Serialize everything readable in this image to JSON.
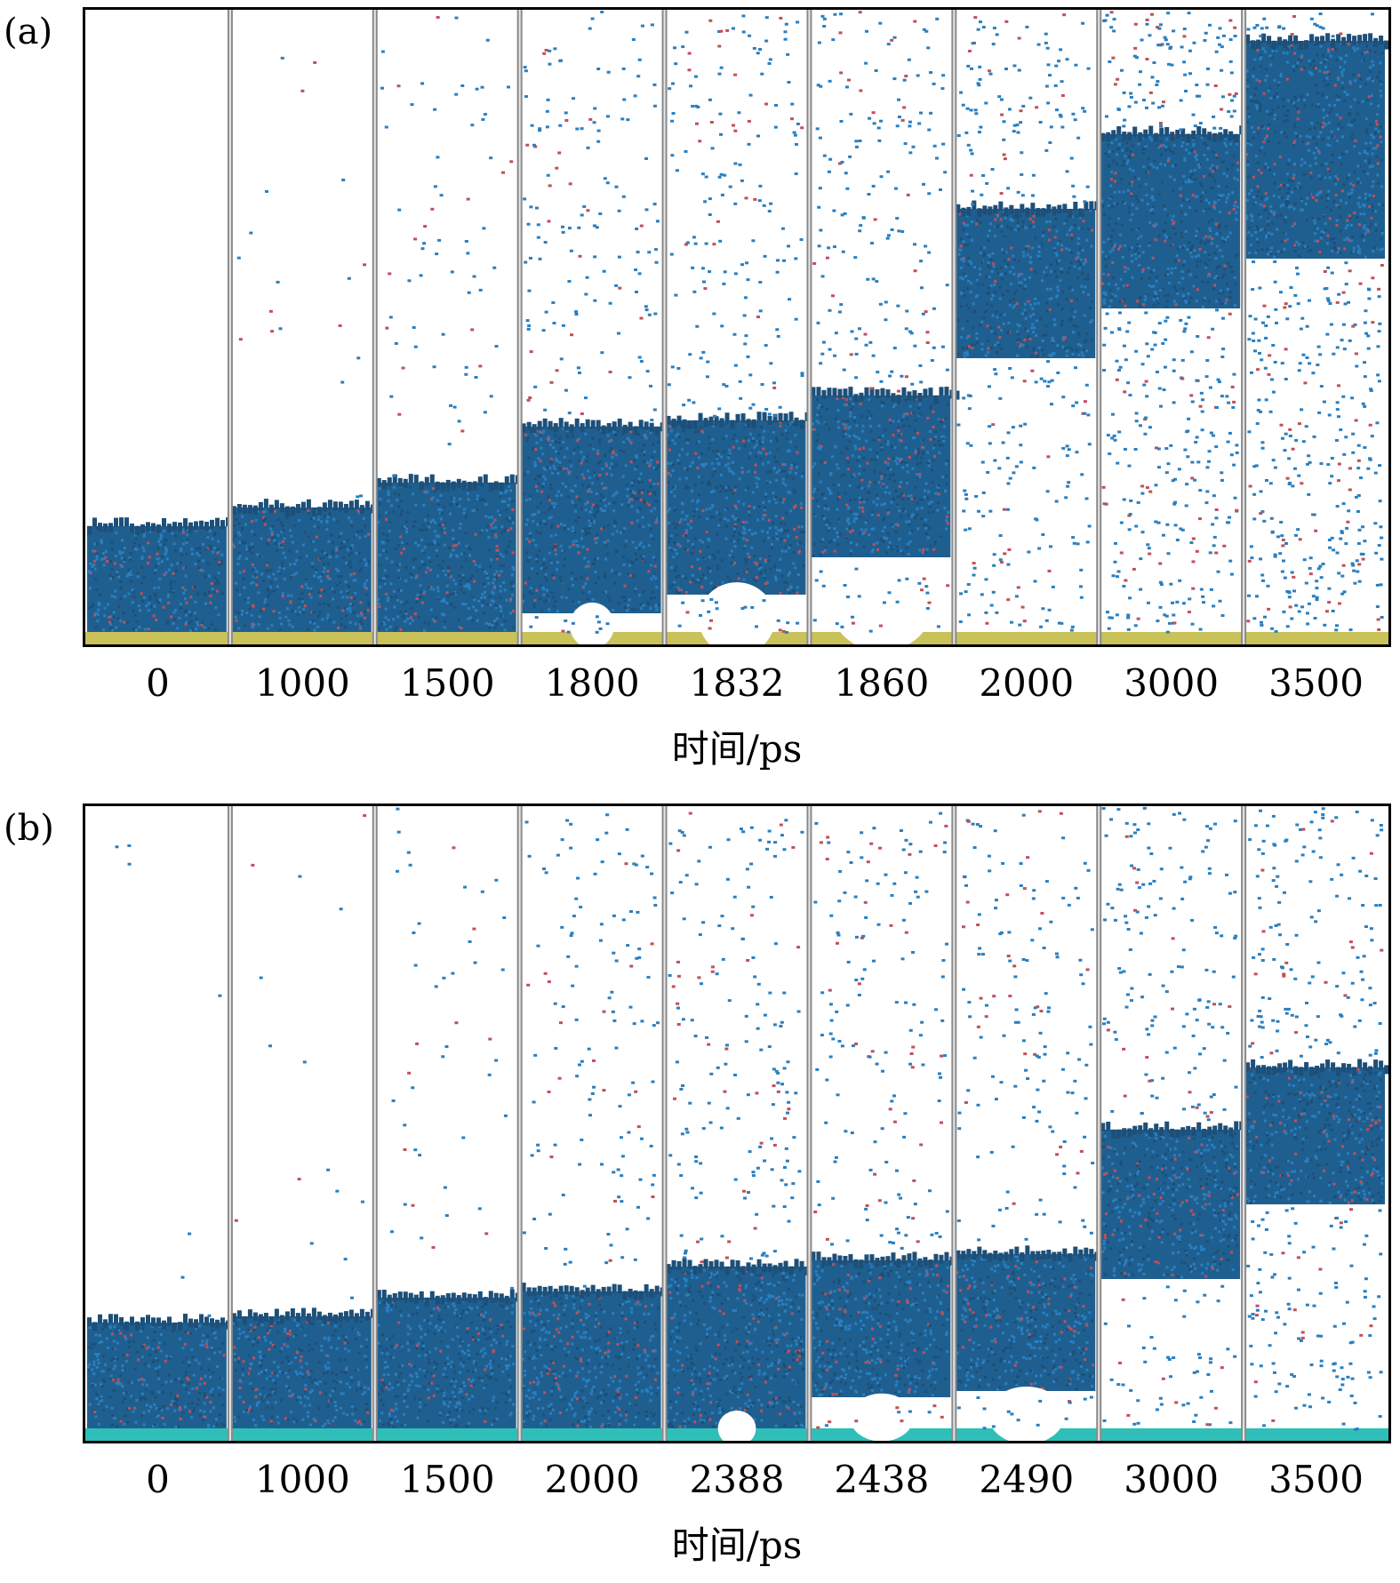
{
  "figure": {
    "panels": [
      {
        "id": "a",
        "label": "(a)",
        "xlabel": "时间/ps",
        "frames": [
          {
            "time": "0",
            "liquid_bottom": 0.0,
            "liquid_top": 0.17,
            "vapor_density": 0.0,
            "bubble": 0
          },
          {
            "time": "1000",
            "liquid_bottom": 0.0,
            "liquid_top": 0.2,
            "vapor_density": 0.03,
            "bubble": 0
          },
          {
            "time": "1500",
            "liquid_bottom": 0.0,
            "liquid_top": 0.24,
            "vapor_density": 0.1,
            "bubble": 0
          },
          {
            "time": "1800",
            "liquid_bottom": 0.03,
            "liquid_top": 0.33,
            "vapor_density": 0.25,
            "bubble": 0.35
          },
          {
            "time": "1832",
            "liquid_bottom": 0.06,
            "liquid_top": 0.34,
            "vapor_density": 0.28,
            "bubble": 0.6
          },
          {
            "time": "1860",
            "liquid_bottom": 0.12,
            "liquid_top": 0.38,
            "vapor_density": 0.3,
            "bubble": 0.8
          },
          {
            "time": "2000",
            "liquid_bottom": 0.44,
            "liquid_top": 0.68,
            "vapor_density": 0.35,
            "bubble": 0
          },
          {
            "time": "3000",
            "liquid_bottom": 0.52,
            "liquid_top": 0.8,
            "vapor_density": 0.55,
            "bubble": 0
          },
          {
            "time": "3500",
            "liquid_bottom": 0.6,
            "liquid_top": 0.95,
            "vapor_density": 0.6,
            "bubble": 0
          }
        ],
        "substrate_color": "#c9c25a"
      },
      {
        "id": "b",
        "label": "(b)",
        "xlabel": "时间/ps",
        "frames": [
          {
            "time": "0",
            "liquid_bottom": 0.0,
            "liquid_top": 0.17,
            "vapor_density": 0.01,
            "bubble": 0
          },
          {
            "time": "1000",
            "liquid_bottom": 0.0,
            "liquid_top": 0.18,
            "vapor_density": 0.02,
            "bubble": 0
          },
          {
            "time": "1500",
            "liquid_bottom": 0.0,
            "liquid_top": 0.21,
            "vapor_density": 0.06,
            "bubble": 0
          },
          {
            "time": "2000",
            "liquid_bottom": 0.0,
            "liquid_top": 0.22,
            "vapor_density": 0.2,
            "bubble": 0
          },
          {
            "time": "2388",
            "liquid_bottom": 0.0,
            "liquid_top": 0.26,
            "vapor_density": 0.25,
            "bubble": 0.3
          },
          {
            "time": "2438",
            "liquid_bottom": 0.05,
            "liquid_top": 0.27,
            "vapor_density": 0.25,
            "bubble": 0.5
          },
          {
            "time": "2490",
            "liquid_bottom": 0.06,
            "liquid_top": 0.28,
            "vapor_density": 0.25,
            "bubble": 0.6
          },
          {
            "time": "3000",
            "liquid_bottom": 0.24,
            "liquid_top": 0.48,
            "vapor_density": 0.3,
            "bubble": 0
          },
          {
            "time": "3500",
            "liquid_bottom": 0.36,
            "liquid_top": 0.58,
            "vapor_density": 0.4,
            "bubble": 0
          }
        ],
        "substrate_color": "#2fbfb8"
      }
    ],
    "colors": {
      "molecule": "#2a7fc0",
      "molecule_dark": "#1d4f78",
      "oxygen": "#c0505a",
      "liquid_base": "#1f5f8f",
      "divider": "#8a8a8a"
    }
  }
}
